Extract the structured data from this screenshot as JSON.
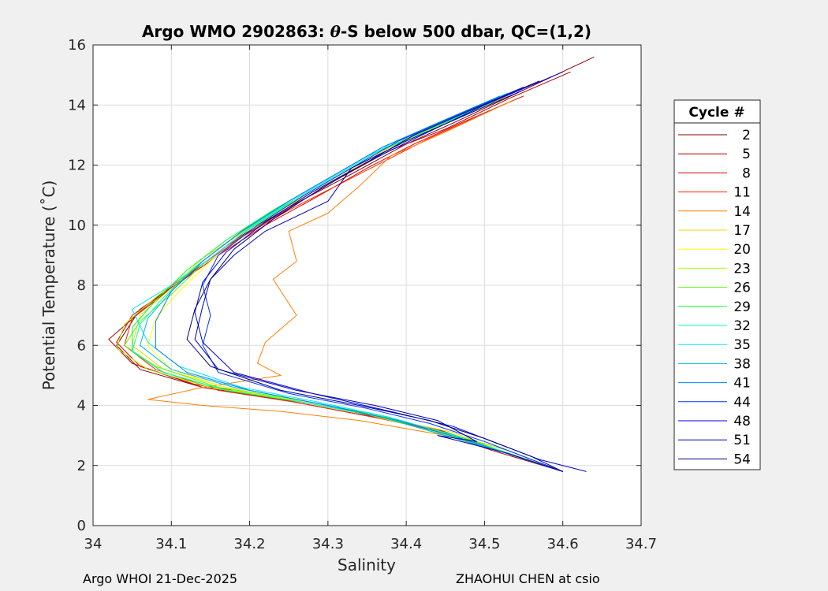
{
  "chart_data": {
    "type": "line",
    "title_prefix": "Argo WMO 2902863: ",
    "title_theta": "θ",
    "title_suffix": "-S below 500 dbar,  QC=(1,2)",
    "xlabel": "Salinity",
    "ylabel": "Potential Temperature (˚C)",
    "xlim": [
      34.0,
      34.7
    ],
    "ylim": [
      0,
      16
    ],
    "x_ticks": [
      34.0,
      34.1,
      34.2,
      34.3,
      34.4,
      34.5,
      34.6,
      34.7
    ],
    "x_tick_labels": [
      "34",
      "34.1",
      "34.2",
      "34.3",
      "34.4",
      "34.5",
      "34.6",
      "34.7"
    ],
    "y_ticks": [
      0,
      2,
      4,
      6,
      8,
      10,
      12,
      14,
      16
    ],
    "y_tick_labels": [
      "0",
      "2",
      "4",
      "6",
      "8",
      "10",
      "12",
      "14",
      "16"
    ],
    "grid": true,
    "legend_title": "Cycle #",
    "legend_position": "right",
    "series": [
      {
        "name": "2",
        "color": "#800000",
        "x": [
          34.64,
          34.55,
          34.46,
          34.4,
          34.33,
          34.25,
          34.18,
          34.12,
          34.06,
          34.03,
          34.06,
          34.14,
          34.24,
          34.34,
          34.44,
          34.52,
          34.6
        ],
        "y": [
          15.6,
          14.5,
          13.4,
          12.7,
          11.7,
          10.6,
          9.5,
          8.3,
          7.2,
          6.0,
          5.2,
          4.6,
          4.2,
          3.7,
          3.2,
          2.5,
          1.8
        ]
      },
      {
        "name": "5",
        "color": "#b00000",
        "x": [
          34.61,
          34.53,
          34.45,
          34.38,
          34.31,
          34.24,
          34.17,
          34.11,
          34.06,
          34.02,
          34.05,
          34.13,
          34.23,
          34.33,
          34.43,
          34.51,
          34.6
        ],
        "y": [
          15.1,
          14.2,
          13.2,
          12.5,
          11.5,
          10.4,
          9.3,
          8.1,
          7.1,
          6.2,
          5.4,
          4.7,
          4.3,
          3.8,
          3.2,
          2.5,
          1.8
        ]
      },
      {
        "name": "8",
        "color": "#e00000",
        "x": [
          34.55,
          34.47,
          34.41,
          34.35,
          34.29,
          34.22,
          34.16,
          34.1,
          34.05,
          34.03,
          34.06,
          34.14,
          34.24,
          34.34,
          34.44,
          34.52,
          34.6
        ],
        "y": [
          14.3,
          13.4,
          12.7,
          11.9,
          11.0,
          10.0,
          9.0,
          7.9,
          7.0,
          6.1,
          5.3,
          4.6,
          4.2,
          3.7,
          3.2,
          2.5,
          1.8
        ]
      },
      {
        "name": "11",
        "color": "#ff2a00",
        "x": [
          34.49,
          34.43,
          34.37,
          34.31,
          34.25,
          34.19,
          34.14,
          34.09,
          34.05,
          34.04,
          34.08,
          34.16,
          34.26,
          34.36,
          34.45,
          34.53,
          34.6
        ],
        "y": [
          13.6,
          12.9,
          12.1,
          11.3,
          10.5,
          9.6,
          8.7,
          7.8,
          6.9,
          6.0,
          5.2,
          4.5,
          4.1,
          3.6,
          3.1,
          2.4,
          1.8
        ]
      },
      {
        "name": "14",
        "color": "#ff7f00",
        "x": [
          34.54,
          34.45,
          34.38,
          34.34,
          34.3,
          34.25,
          34.26,
          34.23,
          34.26,
          34.22,
          34.21,
          34.24,
          34.14,
          34.07,
          34.14,
          34.24,
          34.34,
          34.45,
          34.53,
          34.6
        ],
        "y": [
          14.2,
          13.1,
          12.3,
          11.3,
          10.4,
          9.8,
          8.8,
          8.2,
          7.0,
          6.1,
          5.4,
          5.0,
          4.6,
          4.2,
          4.0,
          3.8,
          3.5,
          3.0,
          2.4,
          1.8
        ]
      },
      {
        "name": "17",
        "color": "#ffd400",
        "x": [
          34.53,
          34.45,
          34.38,
          34.32,
          34.26,
          34.2,
          34.14,
          34.1,
          34.06,
          34.05,
          34.09,
          34.17,
          34.27,
          34.37,
          34.46,
          34.53,
          34.6
        ],
        "y": [
          14.3,
          13.4,
          12.6,
          11.7,
          10.8,
          9.9,
          8.9,
          7.9,
          7.0,
          6.0,
          5.2,
          4.6,
          4.1,
          3.6,
          3.1,
          2.4,
          1.8
        ]
      },
      {
        "name": "20",
        "color": "#ffff00",
        "x": [
          34.52,
          34.44,
          34.37,
          34.31,
          34.25,
          34.2,
          34.15,
          34.11,
          34.08,
          34.07,
          34.1,
          34.18,
          34.28,
          34.38,
          34.46,
          34.53,
          34.6
        ],
        "y": [
          14.2,
          13.3,
          12.5,
          11.6,
          10.7,
          9.8,
          8.8,
          7.8,
          6.9,
          6.0,
          5.2,
          4.5,
          4.1,
          3.6,
          3.0,
          2.4,
          1.8
        ]
      },
      {
        "name": "23",
        "color": "#aaff00",
        "x": [
          34.51,
          34.43,
          34.36,
          34.3,
          34.24,
          34.18,
          34.13,
          34.08,
          34.04,
          34.03,
          34.07,
          34.15,
          34.25,
          34.35,
          34.44,
          34.52,
          34.6
        ],
        "y": [
          14.1,
          13.2,
          12.4,
          11.5,
          10.6,
          9.6,
          8.6,
          7.6,
          6.7,
          5.9,
          5.2,
          4.6,
          4.2,
          3.7,
          3.1,
          2.5,
          1.8
        ]
      },
      {
        "name": "26",
        "color": "#55ff00",
        "x": [
          34.52,
          34.44,
          34.37,
          34.31,
          34.25,
          34.19,
          34.14,
          34.1,
          34.06,
          34.04,
          34.08,
          34.16,
          34.26,
          34.36,
          34.45,
          34.53,
          34.6
        ],
        "y": [
          14.2,
          13.3,
          12.5,
          11.6,
          10.7,
          9.7,
          8.7,
          7.7,
          6.8,
          6.0,
          5.3,
          4.6,
          4.2,
          3.7,
          3.1,
          2.5,
          1.8
        ]
      },
      {
        "name": "29",
        "color": "#00ff2a",
        "x": [
          34.5,
          34.42,
          34.35,
          34.29,
          34.23,
          34.17,
          34.12,
          34.08,
          34.05,
          34.05,
          34.09,
          34.17,
          34.27,
          34.37,
          34.45,
          34.52,
          34.6
        ],
        "y": [
          14.0,
          13.1,
          12.3,
          11.4,
          10.5,
          9.5,
          8.5,
          7.5,
          6.6,
          5.8,
          5.1,
          4.5,
          4.1,
          3.6,
          3.1,
          2.5,
          1.8
        ]
      },
      {
        "name": "32",
        "color": "#00ffaa",
        "x": [
          34.51,
          34.43,
          34.36,
          34.3,
          34.24,
          34.18,
          34.13,
          34.09,
          34.06,
          34.05,
          34.09,
          34.17,
          34.27,
          34.37,
          34.45,
          34.53,
          34.6
        ],
        "y": [
          14.1,
          13.2,
          12.4,
          11.5,
          10.6,
          9.6,
          8.6,
          7.6,
          6.7,
          5.8,
          5.1,
          4.5,
          4.1,
          3.6,
          3.0,
          2.4,
          1.8
        ]
      },
      {
        "name": "35",
        "color": "#00e5ff",
        "x": [
          34.53,
          34.45,
          34.38,
          34.32,
          34.26,
          34.2,
          34.15,
          34.1,
          34.05,
          34.07,
          34.11,
          34.19,
          34.29,
          34.38,
          34.46,
          34.53,
          34.6
        ],
        "y": [
          14.4,
          13.5,
          12.7,
          11.8,
          10.9,
          9.9,
          8.9,
          8.0,
          7.2,
          6.1,
          5.3,
          4.6,
          4.1,
          3.6,
          3.0,
          2.4,
          1.8
        ]
      },
      {
        "name": "38",
        "color": "#00bbdd",
        "x": [
          34.52,
          34.44,
          34.37,
          34.31,
          34.25,
          34.19,
          34.14,
          34.1,
          34.07,
          34.06,
          34.1,
          34.18,
          34.28,
          34.37,
          34.45,
          34.53,
          34.6
        ],
        "y": [
          14.3,
          13.4,
          12.6,
          11.7,
          10.8,
          9.8,
          8.8,
          7.8,
          6.9,
          6.0,
          5.2,
          4.6,
          4.1,
          3.6,
          3.0,
          2.4,
          1.8
        ]
      },
      {
        "name": "41",
        "color": "#0080ff",
        "x": [
          34.52,
          34.44,
          34.37,
          34.31,
          34.25,
          34.19,
          34.14,
          34.1,
          34.08,
          34.08,
          34.12,
          34.2,
          34.3,
          34.39,
          34.47,
          34.54,
          34.6
        ],
        "y": [
          14.3,
          13.4,
          12.6,
          11.7,
          10.8,
          9.8,
          8.8,
          7.8,
          6.8,
          5.9,
          5.1,
          4.5,
          4.0,
          3.5,
          2.9,
          2.3,
          1.8
        ]
      },
      {
        "name": "44",
        "color": "#0030ff",
        "x": [
          34.55,
          34.46,
          34.39,
          34.33,
          34.27,
          34.21,
          34.16,
          34.14,
          34.15,
          34.14,
          34.16,
          34.25,
          34.35,
          34.43,
          34.5,
          34.56,
          34.6
        ],
        "y": [
          14.6,
          13.6,
          12.8,
          11.9,
          11.0,
          10.0,
          9.0,
          8.0,
          7.0,
          6.0,
          5.1,
          4.4,
          3.9,
          3.4,
          2.8,
          2.2,
          1.8
        ]
      },
      {
        "name": "48",
        "color": "#0000e0",
        "x": [
          34.6,
          34.5,
          34.42,
          34.35,
          34.28,
          34.22,
          34.17,
          34.14,
          34.13,
          34.14,
          34.18,
          34.28,
          34.38,
          34.46,
          34.52,
          34.57,
          34.63
        ],
        "y": [
          15.1,
          14.0,
          13.0,
          12.1,
          11.1,
          10.1,
          9.1,
          8.1,
          7.1,
          6.1,
          5.1,
          4.4,
          3.8,
          3.3,
          2.7,
          2.2,
          1.8
        ]
      },
      {
        "name": "51",
        "color": "#0000b0",
        "x": [
          34.55,
          34.47,
          34.4,
          34.33,
          34.3,
          34.22,
          34.18,
          34.15,
          34.14,
          34.13,
          34.16,
          34.26,
          34.36,
          34.44,
          34.49,
          34.44,
          34.53,
          34.6
        ],
        "y": [
          14.5,
          13.6,
          12.8,
          11.9,
          10.8,
          9.8,
          9.0,
          8.2,
          7.3,
          6.2,
          5.2,
          4.5,
          4.0,
          3.5,
          2.8,
          3.0,
          2.4,
          1.8
        ]
      },
      {
        "name": "54",
        "color": "#000080",
        "x": [
          34.57,
          34.48,
          34.41,
          34.35,
          34.29,
          34.23,
          34.18,
          34.15,
          34.13,
          34.12,
          34.15,
          34.24,
          34.34,
          34.43,
          34.5,
          34.56,
          34.6
        ],
        "y": [
          14.8,
          13.8,
          13.0,
          12.1,
          11.2,
          10.2,
          9.2,
          8.2,
          7.2,
          6.2,
          5.3,
          4.5,
          4.0,
          3.5,
          2.9,
          2.3,
          1.8
        ]
      }
    ]
  },
  "footer": {
    "left": "Argo WHOI 21-Dec-2025",
    "right": "ZHAOHUI CHEN at csio"
  }
}
